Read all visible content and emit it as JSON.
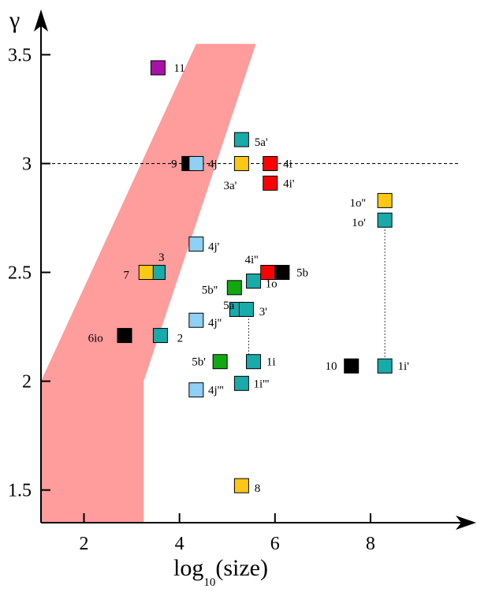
{
  "chart_data": {
    "type": "scatter",
    "xlabel_main": "log",
    "xlabel_sub": "10",
    "xlabel_rest": "(size)",
    "ylabel": "γ",
    "xlim": [
      1.1,
      9.9
    ],
    "ylim": [
      1.35,
      3.65
    ],
    "x_ticks": [
      2,
      4,
      6,
      8
    ],
    "y_ticks": [
      1.5,
      2,
      2.5,
      3,
      3.5
    ],
    "x_tick_labels": [
      "2",
      "4",
      "6",
      "8"
    ],
    "y_tick_labels": [
      "1.5",
      "2",
      "2.5",
      "3",
      "3.5"
    ],
    "reference_line_y": 3,
    "band": {
      "color": "#ff9c9c",
      "polygon": [
        [
          1.1,
          2.0
        ],
        [
          4.35,
          3.55
        ],
        [
          5.6,
          3.55
        ],
        [
          3.25,
          2.0
        ],
        [
          3.25,
          1.35
        ],
        [
          1.1,
          1.35
        ]
      ]
    },
    "colors": {
      "black": "#000000",
      "cyan": "#19aaaa",
      "light_blue": "#8fd0f5",
      "yellow": "#fcc814",
      "red": "#ff0000",
      "green": "#12a812",
      "purple": "#a812a8"
    },
    "points": [
      {
        "label": "11",
        "x": 3.55,
        "y": 3.44,
        "color": "purple",
        "lx": 3.88,
        "ly": 3.44
      },
      {
        "label": "5a'",
        "x": 5.3,
        "y": 3.11,
        "color": "cyan",
        "lx": 5.57,
        "ly": 3.1
      },
      {
        "label": "9",
        "x": 4.2,
        "y": 3.0,
        "color": "black",
        "lx": 3.95,
        "ly": 3.0
      },
      {
        "label": "4j",
        "x": 4.35,
        "y": 3.0,
        "color": "light_blue",
        "lx": 4.6,
        "ly": 3.0
      },
      {
        "label": "3a'",
        "x": 5.3,
        "y": 3.0,
        "color": "yellow",
        "lx": 5.2,
        "ly": 2.9
      },
      {
        "label": "4i",
        "x": 5.9,
        "y": 3.0,
        "color": "red",
        "lx": 6.17,
        "ly": 3.0
      },
      {
        "label": "4i'",
        "x": 5.9,
        "y": 2.91,
        "color": "red",
        "lx": 6.17,
        "ly": 2.91
      },
      {
        "label": "1o''",
        "x": 8.3,
        "y": 2.83,
        "color": "yellow",
        "lx": 7.9,
        "ly": 2.82
      },
      {
        "label": "1o'",
        "x": 8.3,
        "y": 2.74,
        "color": "cyan",
        "lx": 7.9,
        "ly": 2.73
      },
      {
        "label": "4j'",
        "x": 4.35,
        "y": 2.63,
        "color": "light_blue",
        "lx": 4.6,
        "ly": 2.62
      },
      {
        "label": "3",
        "x": 3.55,
        "y": 2.5,
        "color": "cyan",
        "lx": 3.56,
        "ly": 2.57
      },
      {
        "label": "7",
        "x": 3.3,
        "y": 2.5,
        "color": "yellow",
        "lx": 2.95,
        "ly": 2.49
      },
      {
        "label": "4i''",
        "x": 5.85,
        "y": 2.5,
        "color": "red",
        "lx": 5.65,
        "ly": 2.56
      },
      {
        "label": "5b",
        "x": 6.15,
        "y": 2.5,
        "color": "black",
        "lx": 6.45,
        "ly": 2.5
      },
      {
        "label": "1o",
        "x": 5.55,
        "y": 2.46,
        "color": "cyan",
        "lx": 5.8,
        "ly": 2.45
      },
      {
        "label": "5b''",
        "x": 5.15,
        "y": 2.43,
        "color": "green",
        "lx": 4.8,
        "ly": 2.42
      },
      {
        "label": "5a",
        "x": 5.2,
        "y": 2.33,
        "color": "cyan",
        "lx": 5.15,
        "ly": 2.35
      },
      {
        "label": "3'",
        "x": 5.4,
        "y": 2.33,
        "color": "cyan",
        "lx": 5.67,
        "ly": 2.32
      },
      {
        "label": "4j''",
        "x": 4.35,
        "y": 2.28,
        "color": "light_blue",
        "lx": 4.6,
        "ly": 2.27
      },
      {
        "label": "6io",
        "x": 2.85,
        "y": 2.21,
        "color": "black",
        "lx": 2.4,
        "ly": 2.2
      },
      {
        "label": "2",
        "x": 3.6,
        "y": 2.21,
        "color": "cyan",
        "lx": 3.95,
        "ly": 2.2
      },
      {
        "label": "5b'",
        "x": 4.85,
        "y": 2.09,
        "color": "green",
        "lx": 4.55,
        "ly": 2.09
      },
      {
        "label": "1i",
        "x": 5.55,
        "y": 2.09,
        "color": "cyan",
        "lx": 5.82,
        "ly": 2.09
      },
      {
        "label": "10",
        "x": 7.6,
        "y": 2.07,
        "color": "black",
        "lx": 7.3,
        "ly": 2.07
      },
      {
        "label": "1i'",
        "x": 8.3,
        "y": 2.07,
        "color": "cyan",
        "lx": 8.57,
        "ly": 2.07
      },
      {
        "label": "1i'''",
        "x": 5.3,
        "y": 1.99,
        "color": "cyan",
        "lx": 5.55,
        "ly": 1.99
      },
      {
        "label": "4j'''",
        "x": 4.35,
        "y": 1.96,
        "color": "light_blue",
        "lx": 4.6,
        "ly": 1.96
      },
      {
        "label": "8",
        "x": 5.3,
        "y": 1.52,
        "color": "yellow",
        "lx": 5.57,
        "ly": 1.51
      }
    ],
    "connectors": [
      {
        "x": [
          5.45,
          5.45
        ],
        "y": [
          2.33,
          2.09
        ]
      },
      {
        "x": [
          8.3,
          8.3
        ],
        "y": [
          2.74,
          2.07
        ]
      }
    ]
  }
}
